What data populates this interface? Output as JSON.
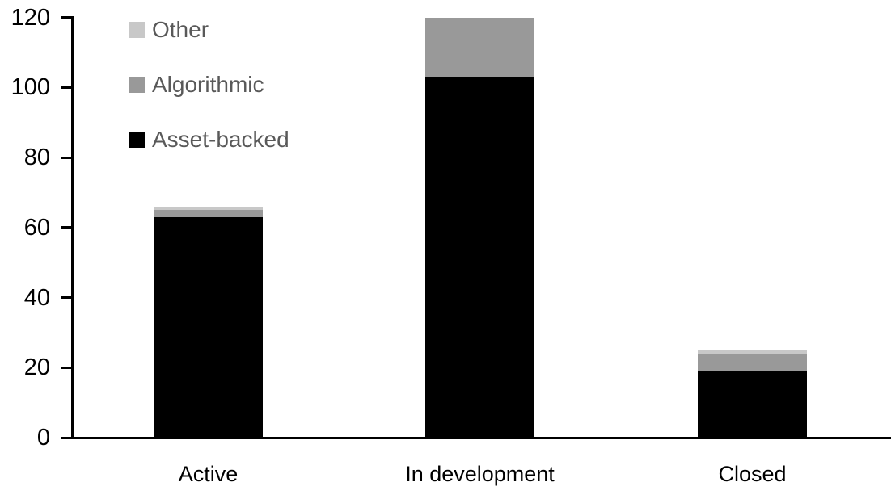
{
  "chart_data": {
    "type": "bar",
    "stacked": true,
    "title": "",
    "xlabel": "",
    "ylabel": "",
    "categories": [
      "Active",
      "In development",
      "Closed"
    ],
    "series": [
      {
        "name": "Asset-backed",
        "color": "#000000",
        "values": [
          63,
          103,
          19
        ]
      },
      {
        "name": "Algorithmic",
        "color": "#999999",
        "values": [
          2,
          17,
          5
        ]
      },
      {
        "name": "Other",
        "color": "#C8C8C8",
        "values": [
          1,
          0,
          1
        ]
      }
    ],
    "ylim": [
      0,
      120
    ],
    "yticks": [
      0,
      20,
      40,
      60,
      80,
      100,
      120
    ],
    "grid": false,
    "legend_position": "top-left",
    "legend_order": [
      "Other",
      "Algorithmic",
      "Asset-backed"
    ],
    "colors": {
      "axis": "#000000",
      "tick_label": "#000000",
      "category_label": "#000000",
      "legend_text": "#595959",
      "background": "#ffffff"
    }
  }
}
